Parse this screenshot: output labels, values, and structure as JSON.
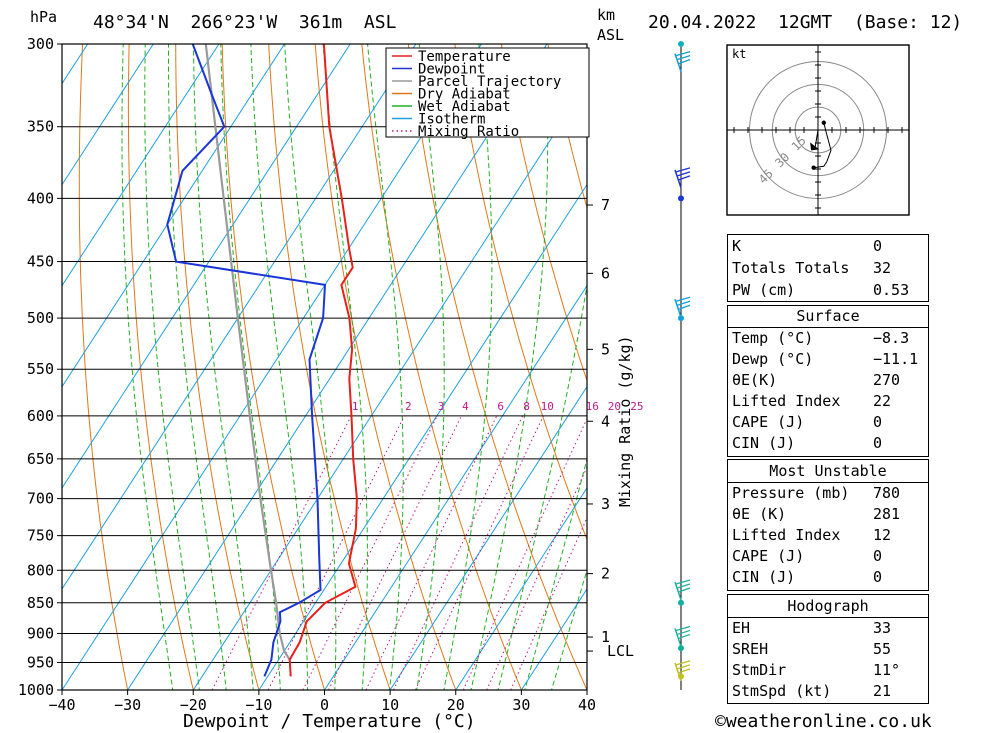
{
  "header": {
    "pressure_unit": "hPa",
    "location": "48°34'N  266°23'W  361m  ASL",
    "km_label": "km",
    "asl_label": "ASL",
    "datetime": "20.04.2022  12GMT  (Base: 12)"
  },
  "footer": {
    "xlabel": "Dewpoint / Temperature (°C)",
    "copyright": "©weatheronline.co.uk"
  },
  "chart_data": {
    "type": "line",
    "chart_kind": "skew-T log-P sounding",
    "xlabel": "Dewpoint / Temperature (°C)",
    "ylabel": "hPa",
    "xlim": [
      -40,
      40
    ],
    "ylim": [
      1000,
      300
    ],
    "y_scale": "log",
    "x_ticks": [
      -40,
      -30,
      -20,
      -10,
      0,
      10,
      20,
      30,
      40
    ],
    "pressure_levels": [
      300,
      350,
      400,
      450,
      500,
      550,
      600,
      650,
      700,
      750,
      800,
      850,
      900,
      950,
      1000
    ],
    "legend": {
      "placement": "top-right",
      "entries": [
        {
          "name": "Temperature",
          "color": "#e8201a",
          "style": "solid"
        },
        {
          "name": "Dewpoint",
          "color": "#1a35d8",
          "style": "solid"
        },
        {
          "name": "Parcel Trajectory",
          "color": "#9a9a9a",
          "style": "solid"
        },
        {
          "name": "Dry Adiabat",
          "color": "#e07818",
          "style": "solid"
        },
        {
          "name": "Wet Adiabat",
          "color": "#22b022",
          "style": "solid"
        },
        {
          "name": "Isotherm",
          "color": "#20a0e0",
          "style": "solid"
        },
        {
          "name": "Mixing Ratio",
          "color": "#c0188a",
          "style": "dotted"
        }
      ]
    },
    "series": [
      {
        "name": "Temperature",
        "color": "#e8201a",
        "points": [
          {
            "p": 975,
            "t": -6.5
          },
          {
            "p": 945,
            "t": -8.3
          },
          {
            "p": 915,
            "t": -8.5
          },
          {
            "p": 880,
            "t": -9.5
          },
          {
            "p": 850,
            "t": -8.5
          },
          {
            "p": 825,
            "t": -5.5
          },
          {
            "p": 790,
            "t": -8.8
          },
          {
            "p": 740,
            "t": -11.2
          },
          {
            "p": 700,
            "t": -14.0
          },
          {
            "p": 650,
            "t": -18.5
          },
          {
            "p": 600,
            "t": -23.0
          },
          {
            "p": 560,
            "t": -27.0
          },
          {
            "p": 530,
            "t": -29.5
          },
          {
            "p": 500,
            "t": -33.0
          },
          {
            "p": 470,
            "t": -37.5
          },
          {
            "p": 455,
            "t": -37.5
          },
          {
            "p": 440,
            "t": -39.8
          },
          {
            "p": 400,
            "t": -46.0
          },
          {
            "p": 350,
            "t": -55.0
          },
          {
            "p": 300,
            "t": -64.0
          }
        ]
      },
      {
        "name": "Dewpoint",
        "color": "#1a35d8",
        "points": [
          {
            "p": 975,
            "t": -10.5
          },
          {
            "p": 945,
            "t": -11.1
          },
          {
            "p": 915,
            "t": -12.5
          },
          {
            "p": 880,
            "t": -13.5
          },
          {
            "p": 865,
            "t": -14.5
          },
          {
            "p": 850,
            "t": -12.5
          },
          {
            "p": 830,
            "t": -10.5
          },
          {
            "p": 780,
            "t": -14.0
          },
          {
            "p": 700,
            "t": -20.0
          },
          {
            "p": 600,
            "t": -29.0
          },
          {
            "p": 540,
            "t": -35.0
          },
          {
            "p": 500,
            "t": -37.0
          },
          {
            "p": 470,
            "t": -40.0
          },
          {
            "p": 450,
            "t": -65.0
          },
          {
            "p": 420,
            "t": -70.0
          },
          {
            "p": 380,
            "t": -73.0
          },
          {
            "p": 350,
            "t": -71.0
          },
          {
            "p": 330,
            "t": -76.0
          },
          {
            "p": 300,
            "t": -84.0
          }
        ]
      },
      {
        "name": "Parcel Trajectory",
        "color": "#9a9a9a",
        "points": [
          {
            "p": 945,
            "t": -8.3
          },
          {
            "p": 930,
            "t": -10.0
          },
          {
            "p": 900,
            "t": -12.4
          },
          {
            "p": 850,
            "t": -16.0
          },
          {
            "p": 800,
            "t": -20.0
          },
          {
            "p": 700,
            "t": -28.7
          },
          {
            "p": 600,
            "t": -38.5
          },
          {
            "p": 500,
            "t": -50.0
          },
          {
            "p": 400,
            "t": -64.0
          },
          {
            "p": 300,
            "t": -82.0
          }
        ]
      }
    ],
    "mixing_ratio_labels": [
      "1",
      "2",
      "3",
      "4",
      "6",
      "8",
      "10",
      "16",
      "20",
      "25"
    ],
    "mixing_ratio_values": [
      1,
      2,
      3,
      4,
      6,
      8,
      10,
      16,
      20,
      25
    ],
    "mixing_ratio_label_pressure": 600,
    "mixing_ratio_axis_label": "Mixing Ratio (g/kg)",
    "height_axis": {
      "labels": [
        {
          "p": 906,
          "label": "1"
        },
        {
          "p": 805,
          "label": "2"
        },
        {
          "p": 707,
          "label": "3"
        },
        {
          "p": 606,
          "label": "4"
        },
        {
          "p": 530,
          "label": "5"
        },
        {
          "p": 460,
          "label": "6"
        },
        {
          "p": 405,
          "label": "7"
        }
      ],
      "lcl": {
        "p": 930,
        "label": "LCL"
      }
    },
    "wind_profile": {
      "markers": [
        {
          "p": 300,
          "color": "#10b0c0"
        },
        {
          "p": 400,
          "color": "#1a35d8"
        },
        {
          "p": 500,
          "color": "#10a0e0"
        },
        {
          "p": 850,
          "color": "#10b0a0"
        },
        {
          "p": 925,
          "color": "#10b0a0"
        },
        {
          "p": 975,
          "color": "#c0c020"
        }
      ],
      "barbs": [
        {
          "p": 310,
          "color": "#10a0d0"
        },
        {
          "p": 385,
          "color": "#1a35d8"
        },
        {
          "p": 490,
          "color": "#10a0e0"
        },
        {
          "p": 830,
          "color": "#20b0a0"
        },
        {
          "p": 905,
          "color": "#20b0a0"
        },
        {
          "p": 965,
          "color": "#c0c020"
        }
      ]
    },
    "hodograph": {
      "unit_label": "kt",
      "ring_labels": [
        "15",
        "30",
        "45"
      ],
      "ring_values": [
        15,
        30,
        45
      ],
      "points": [
        [
          4,
          5
        ],
        [
          6,
          -3
        ],
        [
          9,
          -14
        ],
        [
          6,
          -22
        ],
        [
          4,
          -25
        ],
        [
          -3,
          -26
        ]
      ],
      "storm_motion_marker": [
        -2,
        -12
      ]
    }
  },
  "indices": {
    "k": {
      "label": "K",
      "value": "0"
    },
    "tt": {
      "label": "Totals Totals",
      "value": "32"
    },
    "pw": {
      "label": "PW (cm)",
      "value": "0.53"
    }
  },
  "surface": {
    "title": "Surface",
    "temp": {
      "label": "Temp (°C)",
      "value": "−8.3"
    },
    "dewp": {
      "label": "Dewp (°C)",
      "value": "−11.1"
    },
    "theta_e": {
      "label": "θE(K)",
      "value": "270"
    },
    "li": {
      "label": "Lifted Index",
      "value": "22"
    },
    "cape": {
      "label": "CAPE (J)",
      "value": "0"
    },
    "cin": {
      "label": "CIN (J)",
      "value": "0"
    }
  },
  "most_unstable": {
    "title": "Most Unstable",
    "pressure": {
      "label": "Pressure (mb)",
      "value": "780"
    },
    "theta_e": {
      "label": "θE (K)",
      "value": "281"
    },
    "li": {
      "label": "Lifted Index",
      "value": "12"
    },
    "cape": {
      "label": "CAPE (J)",
      "value": "0"
    },
    "cin": {
      "label": "CIN (J)",
      "value": "0"
    }
  },
  "hodograph_stats": {
    "title": "Hodograph",
    "eh": {
      "label": "EH",
      "value": "33"
    },
    "sreh": {
      "label": "SREH",
      "value": "55"
    },
    "stmdir": {
      "label": "StmDir",
      "value": "11°"
    },
    "stmspd": {
      "label": "StmSpd (kt)",
      "value": "21"
    }
  }
}
